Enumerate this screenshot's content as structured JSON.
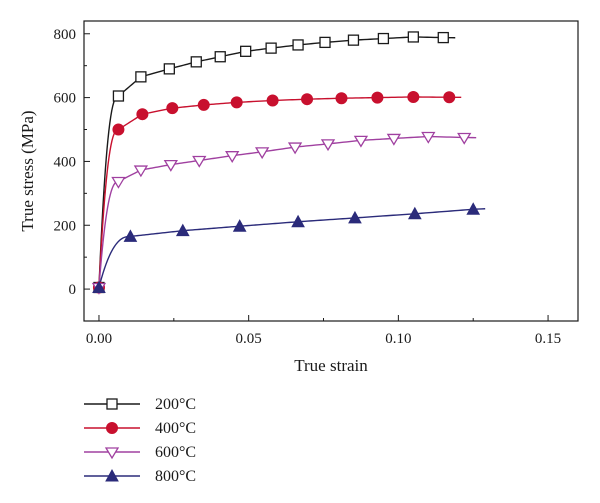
{
  "chart_data": {
    "type": "line",
    "title": "",
    "xlabel": "True strain",
    "ylabel": "True stress (MPa)",
    "xlim": [
      -0.005,
      0.16
    ],
    "ylim": [
      -100,
      840
    ],
    "xticks": [
      0.0,
      0.05,
      0.1,
      0.15
    ],
    "xtick_labels": [
      "0.00",
      "0.05",
      "0.10",
      "0.15"
    ],
    "yticks": [
      0,
      200,
      400,
      600,
      800
    ],
    "ytick_labels": [
      "0",
      "200",
      "400",
      "600",
      "800"
    ],
    "grid": false,
    "legend_position": "bottom-left, below plot",
    "series": [
      {
        "name": "200°C",
        "color": "#1a1a1a",
        "marker": "square-open",
        "x": [
          0,
          0.0065,
          0.014,
          0.0235,
          0.0325,
          0.0405,
          0.049,
          0.0575,
          0.0665,
          0.0755,
          0.085,
          0.095,
          0.105,
          0.115
        ],
        "y": [
          5,
          605,
          665,
          690,
          712,
          728,
          745,
          755,
          765,
          773,
          780,
          785,
          790,
          788
        ]
      },
      {
        "name": "400°C",
        "color": "#c8102e",
        "marker": "circle-filled",
        "x": [
          0,
          0.0065,
          0.0145,
          0.0245,
          0.035,
          0.046,
          0.058,
          0.0695,
          0.081,
          0.093,
          0.105,
          0.117
        ],
        "y": [
          5,
          500,
          548,
          567,
          577,
          585,
          591,
          595,
          598,
          600,
          602,
          601
        ]
      },
      {
        "name": "600°C",
        "color": "#a040a0",
        "marker": "triangle-down-open",
        "x": [
          0,
          0.0065,
          0.014,
          0.024,
          0.0335,
          0.0445,
          0.0545,
          0.0655,
          0.0765,
          0.0875,
          0.0985,
          0.11,
          0.122
        ],
        "y": [
          5,
          337,
          373,
          390,
          403,
          418,
          430,
          445,
          455,
          466,
          472,
          478,
          475
        ]
      },
      {
        "name": "800°C",
        "color": "#2b2b7a",
        "marker": "triangle-up-filled",
        "x": [
          0,
          0.0105,
          0.028,
          0.047,
          0.0665,
          0.0855,
          0.1055,
          0.125
        ],
        "y": [
          5,
          165,
          183,
          197,
          211,
          223,
          236,
          250
        ]
      }
    ]
  }
}
